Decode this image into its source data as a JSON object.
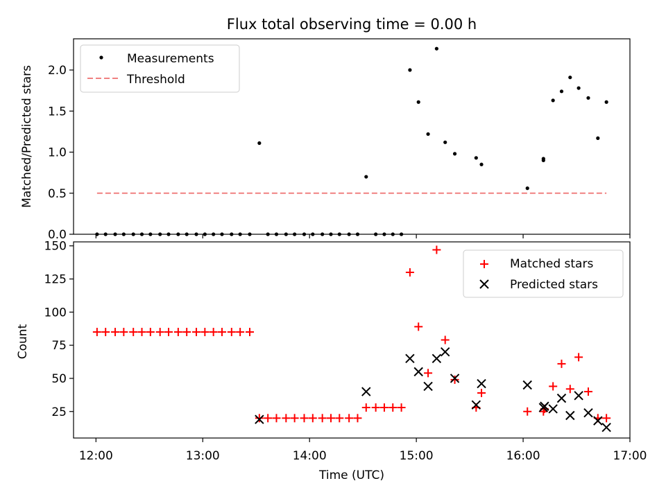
{
  "title": "Flux total observing time = 0.00 h",
  "colors": {
    "red": "#ff0000",
    "black": "#000000",
    "threshold": "#f08080"
  },
  "x_ticks": [
    {
      "label": "12:00",
      "hour": 12
    },
    {
      "label": "13:00",
      "hour": 13
    },
    {
      "label": "14:00",
      "hour": 14
    },
    {
      "label": "15:00",
      "hour": 15
    },
    {
      "label": "16:00",
      "hour": 16
    },
    {
      "label": "17:00",
      "hour": 17
    }
  ],
  "chart_data": [
    {
      "type": "scatter",
      "ylabel": "Matched/Predicted stars",
      "xlim": [
        11.79,
        17.0
      ],
      "ylim": [
        0.0,
        2.38
      ],
      "y_ticks": [
        0.0,
        0.5,
        1.0,
        1.5,
        2.0
      ],
      "y_tick_labels": [
        "0.0",
        "0.5",
        "1.0",
        "1.5",
        "2.0"
      ],
      "legend_placement": "upper-left",
      "series": [
        {
          "name": "Measurements",
          "marker": "dot",
          "x": [
            12.01,
            12.09,
            12.18,
            12.26,
            12.35,
            12.43,
            12.51,
            12.6,
            12.68,
            12.77,
            12.85,
            12.94,
            13.02,
            13.1,
            13.18,
            13.27,
            13.35,
            13.44,
            13.53,
            13.61,
            13.69,
            13.78,
            13.86,
            13.95,
            14.03,
            14.12,
            14.2,
            14.28,
            14.37,
            14.45,
            14.53,
            14.62,
            14.7,
            14.78,
            14.86,
            14.94,
            15.02,
            15.11,
            15.19,
            15.27,
            15.36,
            15.56,
            15.61,
            16.04,
            16.19,
            16.19,
            16.28,
            16.36,
            16.44,
            16.52,
            16.61,
            16.7,
            16.78
          ],
          "y": [
            0,
            0,
            0,
            0,
            0,
            0,
            0,
            0,
            0,
            0,
            0,
            0,
            0,
            0,
            0,
            0,
            0,
            0,
            1.11,
            0,
            0,
            0,
            0,
            0,
            0,
            0,
            0,
            0,
            0,
            0,
            0.7,
            0,
            0,
            0,
            0,
            2.0,
            1.61,
            1.22,
            2.26,
            1.12,
            0.98,
            0.93,
            0.85,
            0.56,
            0.92,
            0.9,
            1.63,
            1.74,
            1.91,
            1.78,
            1.66,
            1.17,
            1.61
          ]
        },
        {
          "name": "Threshold",
          "marker": "dashed-line",
          "x": [
            12.01,
            16.78
          ],
          "y": [
            0.5,
            0.5
          ]
        }
      ]
    },
    {
      "type": "scatter",
      "xlabel": "Time (UTC)",
      "ylabel": "Count",
      "xlim": [
        11.79,
        17.0
      ],
      "ylim": [
        5,
        153
      ],
      "y_ticks": [
        25,
        50,
        75,
        100,
        125,
        150
      ],
      "y_tick_labels": [
        "25",
        "50",
        "75",
        "100",
        "125",
        "150"
      ],
      "legend_placement": "upper-right",
      "series": [
        {
          "name": "Matched stars",
          "marker": "plus",
          "x": [
            12.01,
            12.09,
            12.18,
            12.26,
            12.35,
            12.43,
            12.51,
            12.6,
            12.68,
            12.77,
            12.85,
            12.94,
            13.02,
            13.1,
            13.18,
            13.27,
            13.35,
            13.44,
            13.53,
            13.61,
            13.69,
            13.78,
            13.86,
            13.95,
            14.03,
            14.12,
            14.2,
            14.28,
            14.37,
            14.45,
            14.53,
            14.62,
            14.7,
            14.78,
            14.86,
            14.94,
            15.02,
            15.11,
            15.19,
            15.27,
            15.36,
            15.56,
            15.61,
            16.04,
            16.19,
            16.2,
            16.28,
            16.36,
            16.44,
            16.52,
            16.61,
            16.7,
            16.78
          ],
          "y": [
            85,
            85,
            85,
            85,
            85,
            85,
            85,
            85,
            85,
            85,
            85,
            85,
            85,
            85,
            85,
            85,
            85,
            85,
            20,
            20,
            20,
            20,
            20,
            20,
            20,
            20,
            20,
            20,
            20,
            20,
            28,
            28,
            28,
            28,
            28,
            130,
            89,
            54,
            147,
            79,
            49,
            28,
            39,
            25,
            25,
            27,
            44,
            61,
            42,
            66,
            40,
            20,
            20
          ]
        },
        {
          "name": "Predicted stars",
          "marker": "x",
          "x": [
            13.53,
            14.53,
            14.94,
            15.02,
            15.11,
            15.19,
            15.27,
            15.36,
            15.56,
            15.61,
            16.04,
            16.19,
            16.2,
            16.28,
            16.36,
            16.44,
            16.52,
            16.61,
            16.7,
            16.78
          ],
          "y": [
            19,
            40,
            65,
            55,
            44,
            65,
            70,
            50,
            30,
            46,
            45,
            28,
            29,
            27,
            35,
            22,
            37,
            24,
            18,
            13
          ]
        }
      ]
    }
  ]
}
